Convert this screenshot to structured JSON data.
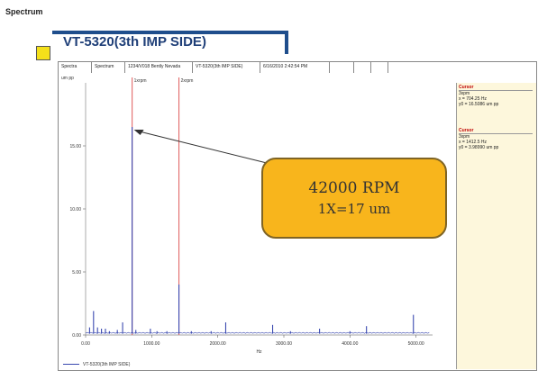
{
  "page": {
    "heading": "Spectrum"
  },
  "title": {
    "text": "VT-5320(3th IMP SIDE)"
  },
  "header_cells": [
    "Spectra",
    "Spectrum",
    "1234/V018 Bently Nevada",
    "VT-5320(3th IMP SIDE)",
    "6/16/2010 2:42:54 PM",
    "",
    "",
    ""
  ],
  "plot": {
    "unit_label": "um pp",
    "xlabel": "Hz",
    "cursor_labels": [
      "1xrpm",
      "2xrpm"
    ]
  },
  "cursors": [
    {
      "title": "Cursor",
      "name": "3xpm",
      "x_text": "x = 704.25  Hz",
      "y_text": "y0 = 16.5086  um pp"
    },
    {
      "title": "Cursor",
      "name": "3xpm",
      "x_text": "x = 1412.5  Hz",
      "y_text": "y0 = 3.98990  um pp"
    }
  ],
  "callout": {
    "line1": "42000 RPM",
    "line2": "1X=17 um"
  },
  "legend": {
    "series_text": "VT-5320(3th IMP SIDE)"
  },
  "colors": {
    "series": "#3a49b0",
    "cursor_line": "#e05a5a",
    "callout_fill": "#f8b51c",
    "title": "#1f3f78"
  },
  "chart_data": {
    "type": "line",
    "xlabel": "Hz",
    "ylabel": "um pp",
    "xlim": [
      0,
      5250
    ],
    "ylim": [
      0,
      20
    ],
    "x_ticks": [
      0,
      1000,
      2000,
      3000,
      4000,
      5000
    ],
    "x_tick_labels": [
      "0.00",
      "1000.00",
      "2000.00",
      "3000.00",
      "4000.00",
      "5000.00"
    ],
    "y_ticks": [
      0,
      5,
      10,
      15
    ],
    "y_tick_labels": [
      "0.00",
      "5.00",
      "10.00",
      "15.00"
    ],
    "vertical_cursors": [
      704.25,
      1412.5
    ],
    "series": [
      {
        "peaks": [
          {
            "x": 60,
            "y": 0.6
          },
          {
            "x": 120,
            "y": 1.9
          },
          {
            "x": 180,
            "y": 0.6
          },
          {
            "x": 240,
            "y": 0.5
          },
          {
            "x": 300,
            "y": 0.5
          },
          {
            "x": 360,
            "y": 0.3
          },
          {
            "x": 480,
            "y": 0.4
          },
          {
            "x": 560,
            "y": 1.0
          },
          {
            "x": 704,
            "y": 16.5
          },
          {
            "x": 760,
            "y": 0.4
          },
          {
            "x": 980,
            "y": 0.5
          },
          {
            "x": 1080,
            "y": 0.3
          },
          {
            "x": 1230,
            "y": 0.3
          },
          {
            "x": 1412,
            "y": 4.0
          },
          {
            "x": 1600,
            "y": 0.3
          },
          {
            "x": 1900,
            "y": 0.3
          },
          {
            "x": 2120,
            "y": 1.0
          },
          {
            "x": 2830,
            "y": 0.8
          },
          {
            "x": 3100,
            "y": 0.3
          },
          {
            "x": 3540,
            "y": 0.5
          },
          {
            "x": 4000,
            "y": 0.3
          },
          {
            "x": 4250,
            "y": 0.7
          },
          {
            "x": 4960,
            "y": 1.6
          }
        ]
      }
    ]
  }
}
